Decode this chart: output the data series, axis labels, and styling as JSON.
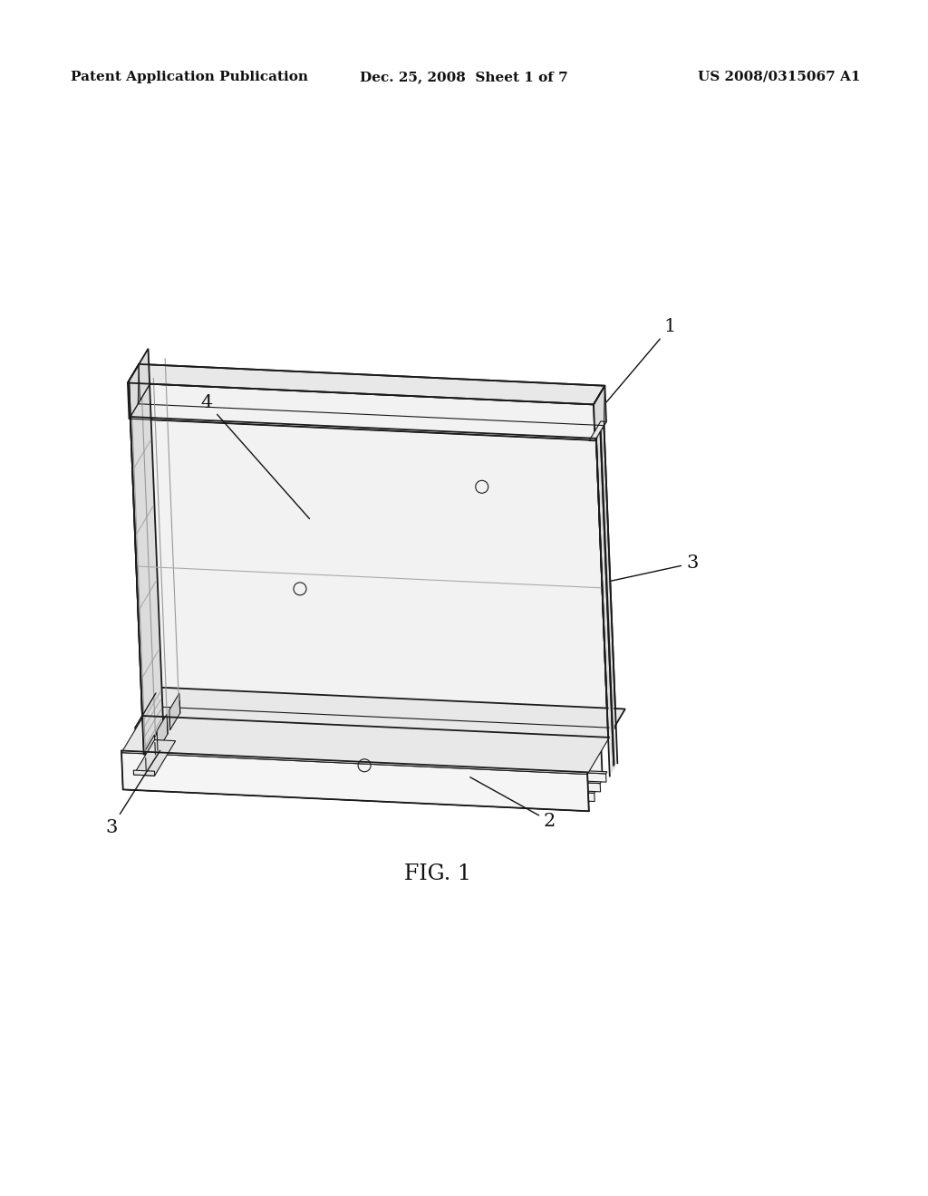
{
  "background_color": "#ffffff",
  "line_color": "#1a1a1a",
  "header_left": "Patent Application Publication",
  "header_center": "Dec. 25, 2008  Sheet 1 of 7",
  "header_right": "US 2008/0315067 A1",
  "fig_label": "FIG. 1",
  "lw_main": 1.3,
  "lw_thin": 0.8,
  "lw_med": 1.0,
  "face_color": "#f2f2f2",
  "top_color": "#e8e8e8",
  "side_color": "#dcdcdc",
  "dark_color": "#c8c8c8"
}
